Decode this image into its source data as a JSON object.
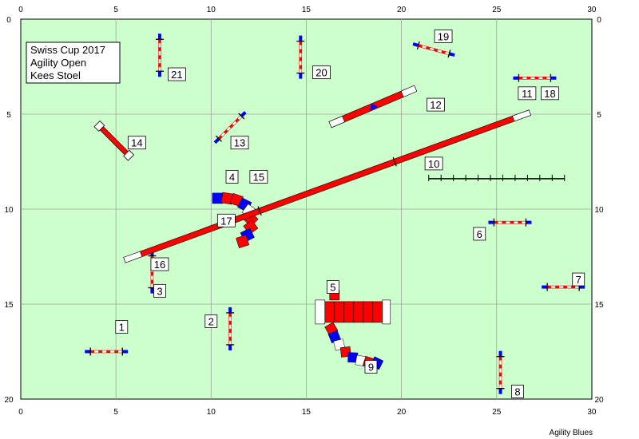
{
  "course_info": {
    "event": "Swiss Cup 2017",
    "class": "Agility Open",
    "judge": "Kees Stoel"
  },
  "footer": "Agility Blues",
  "grid": {
    "x_ticks": [
      "0",
      "5",
      "10",
      "15",
      "20",
      "25",
      "30"
    ],
    "y_ticks": [
      "0",
      "5",
      "10",
      "15",
      "20"
    ]
  },
  "colors": {
    "field": "#ccffcc",
    "grid": "#a0a0a0",
    "red": "#ff0000",
    "blue": "#0000ff",
    "white": "#ffffff"
  },
  "obstacles": [
    {
      "type": "jump",
      "numbers": [
        "1"
      ],
      "x": 4.5,
      "y": 17.5,
      "angle": 0
    },
    {
      "type": "jump",
      "numbers": [
        "2"
      ],
      "x": 11.0,
      "y": 16.3,
      "angle": 90
    },
    {
      "type": "jump",
      "numbers": [
        "3",
        "16"
      ],
      "x": 6.9,
      "y": 13.3,
      "angle": 90
    },
    {
      "type": "tunnel",
      "numbers": [
        "4",
        "15"
      ],
      "x": 12.0,
      "y": 10.5,
      "angle": 0
    },
    {
      "type": "tunnel",
      "numbers": [
        "5",
        "9"
      ],
      "x": 19.0,
      "y": 15.5,
      "angle": 0
    },
    {
      "type": "jump",
      "numbers": [
        "6"
      ],
      "x": 25.7,
      "y": 10.7,
      "angle": 0
    },
    {
      "type": "jump",
      "numbers": [
        "7"
      ],
      "x": 28.5,
      "y": 14.1,
      "angle": 0
    },
    {
      "type": "jump",
      "numbers": [
        "8"
      ],
      "x": 25.2,
      "y": 18.6,
      "angle": 90
    },
    {
      "type": "weave",
      "numbers": [
        "10"
      ],
      "x": 25.0,
      "y": 8.4,
      "angle": 0
    },
    {
      "type": "jump",
      "numbers": [
        "11",
        "18"
      ],
      "x": 27.0,
      "y": 3.1,
      "angle": 0
    },
    {
      "type": "seesaw",
      "numbers": [
        "12"
      ],
      "x": 18.5,
      "y": 4.6,
      "angle": -23
    },
    {
      "type": "jump",
      "numbers": [
        "13"
      ],
      "x": 11.0,
      "y": 5.7,
      "angle": -45
    },
    {
      "type": "wall",
      "numbers": [
        "14"
      ],
      "x": 4.9,
      "y": 6.4,
      "angle": 45
    },
    {
      "type": "dogwalk",
      "numbers": [
        "17"
      ],
      "x": 16.1,
      "y": 8.8,
      "angle": -20
    },
    {
      "type": "jump",
      "numbers": [
        "19"
      ],
      "x": 21.7,
      "y": 1.6,
      "angle": 15
    },
    {
      "type": "jump",
      "numbers": [
        "20"
      ],
      "x": 14.7,
      "y": 2.0,
      "angle": 90
    },
    {
      "type": "jump",
      "numbers": [
        "21"
      ],
      "x": 7.3,
      "y": 1.9,
      "angle": 90
    }
  ],
  "number_labels": [
    {
      "text": "1",
      "x": 5.3,
      "y": 16.2
    },
    {
      "text": "2",
      "x": 10.0,
      "y": 15.9
    },
    {
      "text": "3",
      "x": 7.3,
      "y": 14.3
    },
    {
      "text": "16",
      "x": 7.3,
      "y": 12.9
    },
    {
      "text": "4",
      "x": 11.1,
      "y": 8.3
    },
    {
      "text": "15",
      "x": 12.5,
      "y": 8.3
    },
    {
      "text": "5",
      "x": 16.4,
      "y": 14.1
    },
    {
      "text": "9",
      "x": 18.4,
      "y": 18.3
    },
    {
      "text": "6",
      "x": 24.1,
      "y": 11.3
    },
    {
      "text": "7",
      "x": 29.3,
      "y": 13.7
    },
    {
      "text": "8",
      "x": 26.1,
      "y": 19.6
    },
    {
      "text": "10",
      "x": 21.7,
      "y": 7.6
    },
    {
      "text": "11",
      "x": 26.6,
      "y": 3.9
    },
    {
      "text": "18",
      "x": 27.8,
      "y": 3.9
    },
    {
      "text": "12",
      "x": 21.8,
      "y": 4.5
    },
    {
      "text": "13",
      "x": 11.5,
      "y": 6.5
    },
    {
      "text": "14",
      "x": 6.1,
      "y": 6.5
    },
    {
      "text": "17",
      "x": 10.8,
      "y": 10.6
    },
    {
      "text": "19",
      "x": 22.2,
      "y": 0.9
    },
    {
      "text": "20",
      "x": 15.8,
      "y": 2.8
    },
    {
      "text": "21",
      "x": 8.2,
      "y": 2.9
    }
  ]
}
